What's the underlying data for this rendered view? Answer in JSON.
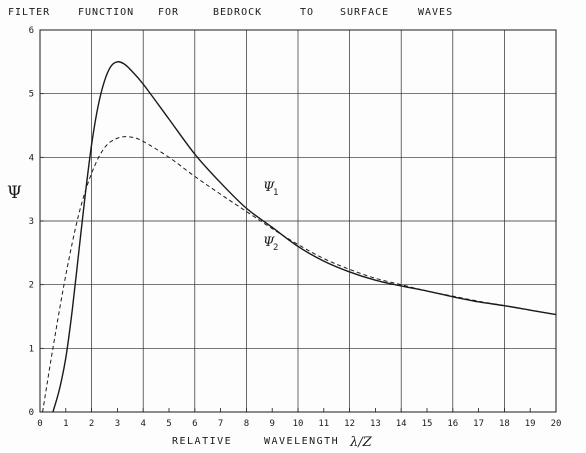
{
  "chart_data": {
    "type": "line",
    "title": "FILTER FUNCTION FOR BEDROCK TO SURFACE WAVES",
    "title_words": [
      "FILTER",
      "FUNCTION",
      "FOR",
      "BEDROCK",
      "TO",
      "SURFACE",
      "WAVES"
    ],
    "xlabel": "RELATIVE WAVELENGTH",
    "xlabel_words": [
      "RELATIVE",
      "WAVELENGTH"
    ],
    "xlabel_symbol": "λ/Z",
    "ylabel": "Ψ",
    "xlim": [
      0,
      20
    ],
    "ylim": [
      0,
      6
    ],
    "grid": true,
    "x_ticks": [
      "0",
      "1",
      "2",
      "3",
      "4",
      "5",
      "6",
      "7",
      "8",
      "9",
      "10",
      "11",
      "12",
      "13",
      "14",
      "15",
      "16",
      "17",
      "18",
      "19",
      "20"
    ],
    "y_ticks": [
      "0",
      "1",
      "2",
      "3",
      "4",
      "5",
      "6"
    ],
    "series": [
      {
        "name": "Ψ₁",
        "label_main": "Ψ",
        "label_sub": "1",
        "style": "solid",
        "color": "#1a1a1a",
        "x": [
          0.5,
          0.75,
          1.0,
          1.25,
          1.5,
          1.75,
          2.0,
          2.25,
          2.5,
          2.75,
          3.0,
          3.25,
          3.5,
          4,
          5,
          6,
          7,
          8,
          9,
          10,
          11,
          12,
          13,
          14,
          15,
          16,
          17,
          18,
          19,
          20
        ],
        "y": [
          0.0,
          0.35,
          0.85,
          1.6,
          2.5,
          3.4,
          4.2,
          4.8,
          5.2,
          5.43,
          5.5,
          5.47,
          5.38,
          5.15,
          4.6,
          4.05,
          3.6,
          3.2,
          2.9,
          2.6,
          2.37,
          2.2,
          2.07,
          1.98,
          1.9,
          1.81,
          1.73,
          1.67,
          1.6,
          1.53
        ]
      },
      {
        "name": "Ψ₂",
        "label_main": "Ψ",
        "label_sub": "2",
        "style": "dashed",
        "color": "#1a1a1a",
        "x": [
          0.1,
          0.5,
          1.0,
          1.5,
          2.0,
          2.5,
          3.0,
          3.5,
          4,
          5,
          6,
          7,
          8,
          9,
          10,
          11,
          12,
          13,
          14,
          15,
          16,
          17,
          18,
          19,
          20
        ],
        "y": [
          0.0,
          1.0,
          2.15,
          3.1,
          3.75,
          4.15,
          4.3,
          4.32,
          4.25,
          4.0,
          3.7,
          3.42,
          3.15,
          2.88,
          2.63,
          2.41,
          2.24,
          2.1,
          2.0,
          1.9,
          1.82,
          1.74,
          1.67,
          1.6,
          1.53
        ]
      }
    ]
  }
}
